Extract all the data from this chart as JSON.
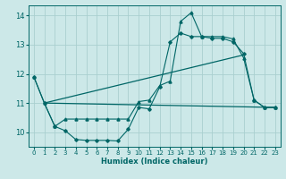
{
  "bg_color": "#cce8e8",
  "grid_color": "#aacfcf",
  "line_color": "#006666",
  "xlabel": "Humidex (Indice chaleur)",
  "xlim": [
    -0.5,
    23.5
  ],
  "ylim": [
    9.5,
    14.35
  ],
  "yticks": [
    10,
    11,
    12,
    13,
    14
  ],
  "xticks": [
    0,
    1,
    2,
    3,
    4,
    5,
    6,
    7,
    8,
    9,
    10,
    11,
    12,
    13,
    14,
    15,
    16,
    17,
    18,
    19,
    20,
    21,
    22,
    23
  ],
  "line1_x": [
    0,
    1,
    2,
    3,
    4,
    5,
    6,
    7,
    8,
    9,
    10,
    11,
    12,
    13,
    14,
    15,
    16,
    17,
    18,
    19,
    20,
    21,
    22,
    23
  ],
  "line1_y": [
    11.9,
    11.0,
    10.2,
    10.05,
    9.75,
    9.72,
    9.72,
    9.72,
    9.7,
    10.1,
    10.85,
    10.8,
    11.55,
    13.1,
    13.4,
    13.28,
    13.28,
    13.22,
    13.22,
    13.1,
    12.7,
    11.1,
    10.85,
    10.85
  ],
  "line2_x": [
    0,
    1,
    2,
    3,
    4,
    5,
    6,
    7,
    8,
    9,
    10,
    11,
    12,
    13,
    14,
    15,
    16,
    17,
    18,
    19,
    20,
    21,
    22,
    23
  ],
  "line2_y": [
    11.9,
    11.0,
    10.2,
    10.45,
    10.45,
    10.45,
    10.45,
    10.45,
    10.45,
    10.45,
    11.05,
    11.1,
    11.6,
    11.75,
    13.8,
    14.1,
    13.28,
    13.28,
    13.28,
    13.2,
    12.55,
    11.1,
    10.85,
    10.85
  ],
  "line3_x": [
    1,
    23
  ],
  "line3_y": [
    11.0,
    10.85
  ],
  "line4_x": [
    1,
    20
  ],
  "line4_y": [
    11.0,
    12.65
  ]
}
